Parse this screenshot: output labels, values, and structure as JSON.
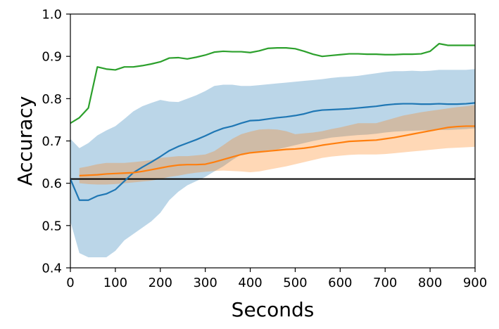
{
  "chart_data": {
    "type": "line",
    "title": "",
    "xlabel": "Seconds",
    "ylabel": "Accuracy",
    "xlim": [
      0,
      900
    ],
    "ylim": [
      0.4,
      1.0
    ],
    "xticks": [
      0,
      100,
      200,
      300,
      400,
      500,
      600,
      700,
      800,
      900
    ],
    "yticks": [
      0.4,
      0.5,
      0.6,
      0.7,
      0.8,
      0.9,
      1.0
    ],
    "grid": false,
    "legend": "none",
    "baseline": {
      "y": 0.61,
      "color": "#000000"
    },
    "series": [
      {
        "color": "#1f77b4",
        "band_color": "#1f77b4",
        "x": [
          0,
          20,
          40,
          60,
          80,
          100,
          120,
          140,
          160,
          180,
          200,
          220,
          240,
          260,
          280,
          300,
          320,
          340,
          360,
          380,
          400,
          420,
          440,
          460,
          480,
          500,
          520,
          540,
          560,
          580,
          600,
          620,
          640,
          660,
          680,
          700,
          720,
          740,
          760,
          780,
          800,
          820,
          840,
          860,
          880,
          900
        ],
        "y": [
          0.61,
          0.56,
          0.56,
          0.57,
          0.575,
          0.585,
          0.605,
          0.625,
          0.638,
          0.65,
          0.663,
          0.677,
          0.687,
          0.695,
          0.703,
          0.712,
          0.722,
          0.73,
          0.735,
          0.742,
          0.748,
          0.749,
          0.752,
          0.755,
          0.757,
          0.76,
          0.764,
          0.77,
          0.773,
          0.774,
          0.775,
          0.776,
          0.778,
          0.78,
          0.782,
          0.785,
          0.787,
          0.788,
          0.788,
          0.787,
          0.787,
          0.788,
          0.787,
          0.787,
          0.788,
          0.79
        ],
        "lower": [
          0.51,
          0.435,
          0.425,
          0.425,
          0.425,
          0.44,
          0.465,
          0.48,
          0.495,
          0.51,
          0.53,
          0.56,
          0.58,
          0.595,
          0.605,
          0.615,
          0.628,
          0.64,
          0.655,
          0.668,
          0.672,
          0.675,
          0.678,
          0.68,
          0.685,
          0.69,
          0.695,
          0.7,
          0.704,
          0.708,
          0.71,
          0.712,
          0.714,
          0.715,
          0.717,
          0.72,
          0.722,
          0.723,
          0.724,
          0.725,
          0.725,
          0.726,
          0.726,
          0.727,
          0.728,
          0.73
        ],
        "upper": [
          0.705,
          0.683,
          0.695,
          0.713,
          0.725,
          0.735,
          0.752,
          0.77,
          0.782,
          0.79,
          0.797,
          0.793,
          0.792,
          0.8,
          0.808,
          0.818,
          0.83,
          0.833,
          0.833,
          0.83,
          0.83,
          0.832,
          0.834,
          0.836,
          0.838,
          0.84,
          0.842,
          0.844,
          0.846,
          0.849,
          0.851,
          0.852,
          0.854,
          0.857,
          0.86,
          0.863,
          0.865,
          0.865,
          0.866,
          0.865,
          0.866,
          0.868,
          0.868,
          0.868,
          0.868,
          0.87
        ]
      },
      {
        "color": "#ff7f0e",
        "band_color": "#ff7f0e",
        "x": [
          20,
          40,
          60,
          80,
          100,
          120,
          140,
          160,
          180,
          200,
          220,
          240,
          260,
          280,
          300,
          320,
          340,
          360,
          380,
          400,
          420,
          440,
          460,
          480,
          500,
          520,
          540,
          560,
          580,
          600,
          620,
          640,
          660,
          680,
          700,
          720,
          740,
          760,
          780,
          800,
          820,
          840,
          860,
          880,
          900
        ],
        "y": [
          0.618,
          0.619,
          0.62,
          0.622,
          0.623,
          0.624,
          0.625,
          0.628,
          0.632,
          0.636,
          0.64,
          0.643,
          0.644,
          0.644,
          0.645,
          0.65,
          0.656,
          0.662,
          0.668,
          0.672,
          0.674,
          0.676,
          0.678,
          0.68,
          0.681,
          0.683,
          0.686,
          0.69,
          0.693,
          0.696,
          0.699,
          0.7,
          0.701,
          0.702,
          0.705,
          0.708,
          0.712,
          0.716,
          0.72,
          0.724,
          0.728,
          0.732,
          0.734,
          0.735,
          0.735
        ],
        "lower": [
          0.6,
          0.598,
          0.597,
          0.597,
          0.598,
          0.6,
          0.602,
          0.604,
          0.606,
          0.61,
          0.615,
          0.618,
          0.622,
          0.625,
          0.627,
          0.629,
          0.63,
          0.629,
          0.628,
          0.626,
          0.628,
          0.632,
          0.636,
          0.64,
          0.645,
          0.65,
          0.655,
          0.66,
          0.663,
          0.665,
          0.667,
          0.668,
          0.668,
          0.668,
          0.669,
          0.671,
          0.673,
          0.675,
          0.677,
          0.679,
          0.681,
          0.683,
          0.684,
          0.685,
          0.686
        ],
        "upper": [
          0.636,
          0.64,
          0.645,
          0.648,
          0.648,
          0.648,
          0.65,
          0.652,
          0.655,
          0.66,
          0.662,
          0.664,
          0.664,
          0.666,
          0.668,
          0.676,
          0.69,
          0.705,
          0.716,
          0.722,
          0.727,
          0.728,
          0.727,
          0.723,
          0.716,
          0.718,
          0.72,
          0.723,
          0.728,
          0.732,
          0.737,
          0.742,
          0.742,
          0.742,
          0.748,
          0.754,
          0.76,
          0.764,
          0.768,
          0.771,
          0.774,
          0.777,
          0.78,
          0.782,
          0.785
        ]
      },
      {
        "color": "#2ca02c",
        "x": [
          0,
          20,
          40,
          60,
          80,
          100,
          120,
          140,
          160,
          180,
          200,
          220,
          240,
          260,
          280,
          300,
          320,
          340,
          360,
          380,
          400,
          420,
          440,
          460,
          480,
          500,
          520,
          540,
          560,
          580,
          600,
          620,
          640,
          660,
          680,
          700,
          720,
          740,
          760,
          780,
          800,
          820,
          840,
          860,
          880,
          900
        ],
        "y": [
          0.742,
          0.755,
          0.778,
          0.875,
          0.87,
          0.868,
          0.875,
          0.875,
          0.878,
          0.882,
          0.887,
          0.896,
          0.897,
          0.894,
          0.898,
          0.903,
          0.91,
          0.912,
          0.911,
          0.911,
          0.909,
          0.913,
          0.919,
          0.92,
          0.92,
          0.918,
          0.912,
          0.905,
          0.9,
          0.902,
          0.904,
          0.906,
          0.906,
          0.905,
          0.905,
          0.904,
          0.904,
          0.905,
          0.905,
          0.906,
          0.912,
          0.93,
          0.926,
          0.926,
          0.926,
          0.926
        ]
      }
    ]
  }
}
